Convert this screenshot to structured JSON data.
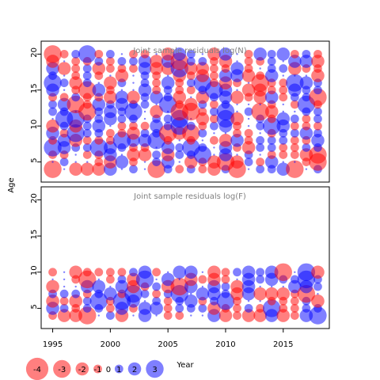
{
  "chart_data": [
    {
      "type": "scatter",
      "title": "Joint sample residuals log(N)",
      "xlabel": "",
      "ylabel": "",
      "xlim": [
        1994,
        2019
      ],
      "ylim": [
        2.2,
        21.8
      ],
      "x_years": [
        1995,
        2018
      ],
      "ages": [
        4,
        20
      ],
      "yticks": [
        5,
        10,
        15,
        20
      ],
      "colors": {
        "positive": "#0000ff",
        "negative": "#ff0000"
      },
      "seed": 7
    },
    {
      "type": "scatter",
      "title": "Joint sample residuals log(F)",
      "xlabel": "",
      "ylabel": "",
      "xlim": [
        1994,
        2019
      ],
      "ylim": [
        2.2,
        21.8
      ],
      "x_years": [
        1995,
        2018
      ],
      "ages": [
        4,
        10
      ],
      "yticks": [
        5,
        10,
        15,
        20
      ],
      "xticks": [
        1995,
        2000,
        2005,
        2010,
        2015
      ],
      "colors": {
        "positive": "#0000ff",
        "negative": "#ff0000"
      },
      "seed": 23
    }
  ],
  "labels": {
    "shared_ylabel": "Age",
    "shared_xlabel": "Year"
  },
  "legend": {
    "entries": [
      {
        "label": "-4",
        "value": -4
      },
      {
        "label": "-3",
        "value": -3
      },
      {
        "label": "-2",
        "value": -2
      },
      {
        "label": "-1",
        "value": -1
      },
      {
        "label": "0",
        "value": 0
      },
      {
        "label": "1",
        "value": 1
      },
      {
        "label": "2",
        "value": 2
      },
      {
        "label": "3",
        "value": 3
      }
    ]
  }
}
